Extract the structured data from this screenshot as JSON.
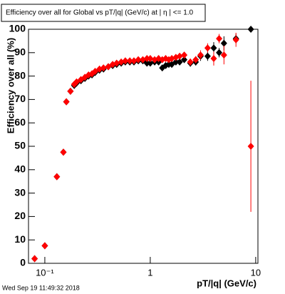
{
  "chart_data": {
    "type": "scatter",
    "title": "Efficiency over all for Global vs pT/|q| (GeV/c) at |  η | <= 1.0",
    "x_label": "pT/|q| (GeV/c)",
    "y_label": "Efficiency over all (%)",
    "timestamp": "Wed Sep 19 11:49:32 2018",
    "log_x": true,
    "xlim": [
      0.07,
      10.5
    ],
    "xticks": [
      {
        "value": 0.1,
        "label": "10⁻¹"
      },
      1,
      10
    ],
    "ylim": [
      0,
      100
    ],
    "yticks": [
      0,
      10,
      20,
      30,
      40,
      50,
      60,
      70,
      80,
      90,
      100
    ],
    "x": [
      0.08,
      0.1,
      0.13,
      0.15,
      0.16,
      0.175,
      0.19,
      0.2,
      0.22,
      0.24,
      0.26,
      0.28,
      0.3,
      0.33,
      0.36,
      0.4,
      0.44,
      0.48,
      0.53,
      0.58,
      0.64,
      0.7,
      0.77,
      0.85,
      0.93,
      1.0,
      1.1,
      1.2,
      1.3,
      1.4,
      1.5,
      1.6,
      1.75,
      1.9,
      2.1,
      2.4,
      2.7,
      3.0,
      3.5,
      4.0,
      4.5,
      5.0,
      6.5,
      9.0
    ],
    "series": [
      {
        "color": "#000000",
        "values": [
          2,
          7.5,
          37,
          47.5,
          69,
          73.5,
          76,
          77,
          78,
          79,
          80,
          80.5,
          81.5,
          82.5,
          83,
          84,
          84.5,
          85,
          85.5,
          86,
          86,
          86,
          86.5,
          86.5,
          85.5,
          85.5,
          86,
          86,
          83.5,
          84.5,
          85,
          85,
          86,
          86,
          87,
          85.5,
          86,
          88.5,
          88.5,
          92,
          90,
          94,
          96,
          100
        ],
        "errors": [
          1,
          1,
          1,
          1,
          1,
          1,
          0.8,
          0.6,
          0.6,
          0.5,
          0.5,
          0.5,
          0.5,
          0.5,
          0.5,
          0.5,
          0.5,
          0.5,
          0.5,
          0.5,
          0.5,
          0.5,
          0.5,
          0.5,
          0.6,
          0.6,
          0.6,
          0.7,
          0.7,
          0.8,
          0.8,
          0.9,
          0.9,
          1,
          1,
          1.5,
          1.5,
          2,
          2,
          2.5,
          2,
          3,
          2,
          0
        ]
      },
      {
        "color": "#ff0000",
        "values": [
          2,
          7.5,
          37,
          47.5,
          69,
          73.5,
          76.5,
          77.5,
          78.5,
          79.5,
          80.5,
          81,
          82,
          83,
          83.5,
          84,
          85,
          85.5,
          86,
          86.5,
          86.5,
          86.5,
          87,
          87,
          87.5,
          87.5,
          87,
          87.5,
          87,
          87.5,
          87,
          87.5,
          88,
          88.5,
          89,
          86,
          87,
          89,
          92,
          87.5,
          96,
          89,
          95.5,
          50
        ],
        "errors": [
          1,
          1,
          1,
          1,
          1,
          1,
          0.8,
          0.6,
          0.6,
          0.5,
          0.5,
          0.5,
          0.5,
          0.5,
          0.5,
          0.5,
          0.5,
          0.5,
          0.5,
          0.5,
          0.5,
          0.5,
          0.5,
          0.5,
          0.6,
          0.6,
          0.6,
          0.7,
          0.7,
          0.8,
          0.8,
          0.9,
          0.9,
          1,
          1,
          1.5,
          1.5,
          2,
          2,
          3,
          2,
          4,
          3,
          28
        ]
      }
    ]
  }
}
